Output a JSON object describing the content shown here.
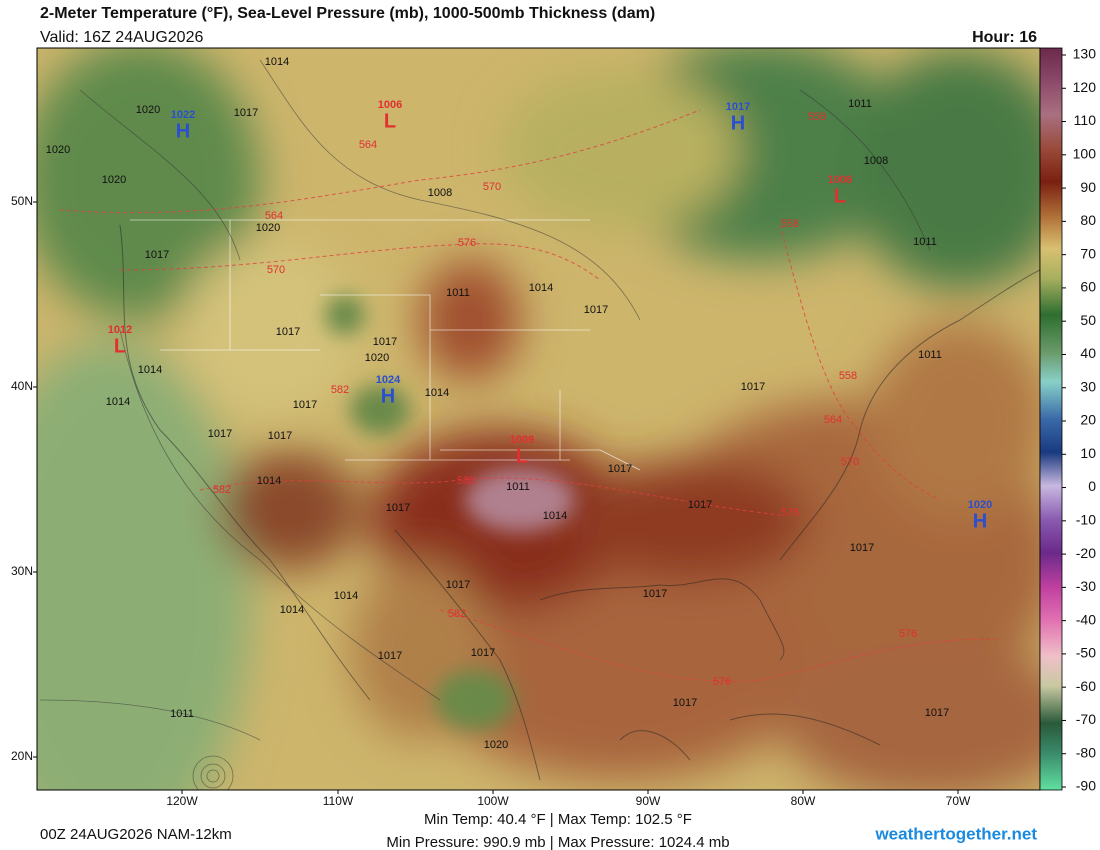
{
  "header": {
    "title": "2-Meter Temperature (°F), Sea-Level Pressure (mb), 1000-500mb Thickness (dam)",
    "valid": "Valid: 16Z 24AUG2026",
    "hour": "Hour: 16"
  },
  "lat_labels": [
    "50N",
    "40N",
    "30N",
    "20N"
  ],
  "lon_labels": [
    "120W",
    "110W",
    "100W",
    "90W",
    "80W",
    "70W"
  ],
  "colorbar": {
    "ticks": [
      130,
      120,
      110,
      100,
      90,
      80,
      70,
      60,
      50,
      40,
      30,
      20,
      10,
      0,
      -10,
      -20,
      -30,
      -40,
      -50,
      -60,
      -70,
      -80,
      -90
    ]
  },
  "pressure_centers": [
    {
      "letter": "H",
      "value": 1022
    },
    {
      "letter": "L",
      "value": 1006
    },
    {
      "letter": "H",
      "value": 1017
    },
    {
      "letter": "L",
      "value": 1006
    },
    {
      "letter": "L",
      "value": 1012
    },
    {
      "letter": "H",
      "value": 1024
    },
    {
      "letter": "L",
      "value": 1009
    },
    {
      "letter": "H",
      "value": 1020
    }
  ],
  "isobar_labels": [
    1014,
    1020,
    1017,
    1020,
    1020,
    1008,
    1011,
    1008,
    1011,
    1020,
    1017,
    1011,
    1014,
    1017,
    1017,
    1017,
    1020,
    1014,
    1014,
    1017,
    1014,
    1017,
    1017,
    1011,
    1017,
    1017,
    1014,
    1011,
    1014,
    1017,
    1017,
    1017,
    1017,
    1014,
    1017,
    1014,
    1017,
    1017,
    1017,
    1017,
    1011,
    1020
  ],
  "thickness_labels": [
    564,
    570,
    564,
    576,
    570,
    558,
    558,
    582,
    564,
    570,
    558,
    588,
    582,
    576,
    582,
    576,
    576
  ],
  "footer": {
    "model_run": "00Z 24AUG2026 NAM-12km",
    "temp_range": "Min Temp:  40.4 °F | Max Temp: 102.5 °F",
    "pressure_range": "Min Pressure: 990.9 mb | Max Pressure: 1024.4 mb",
    "website": "weathertogether.net"
  }
}
